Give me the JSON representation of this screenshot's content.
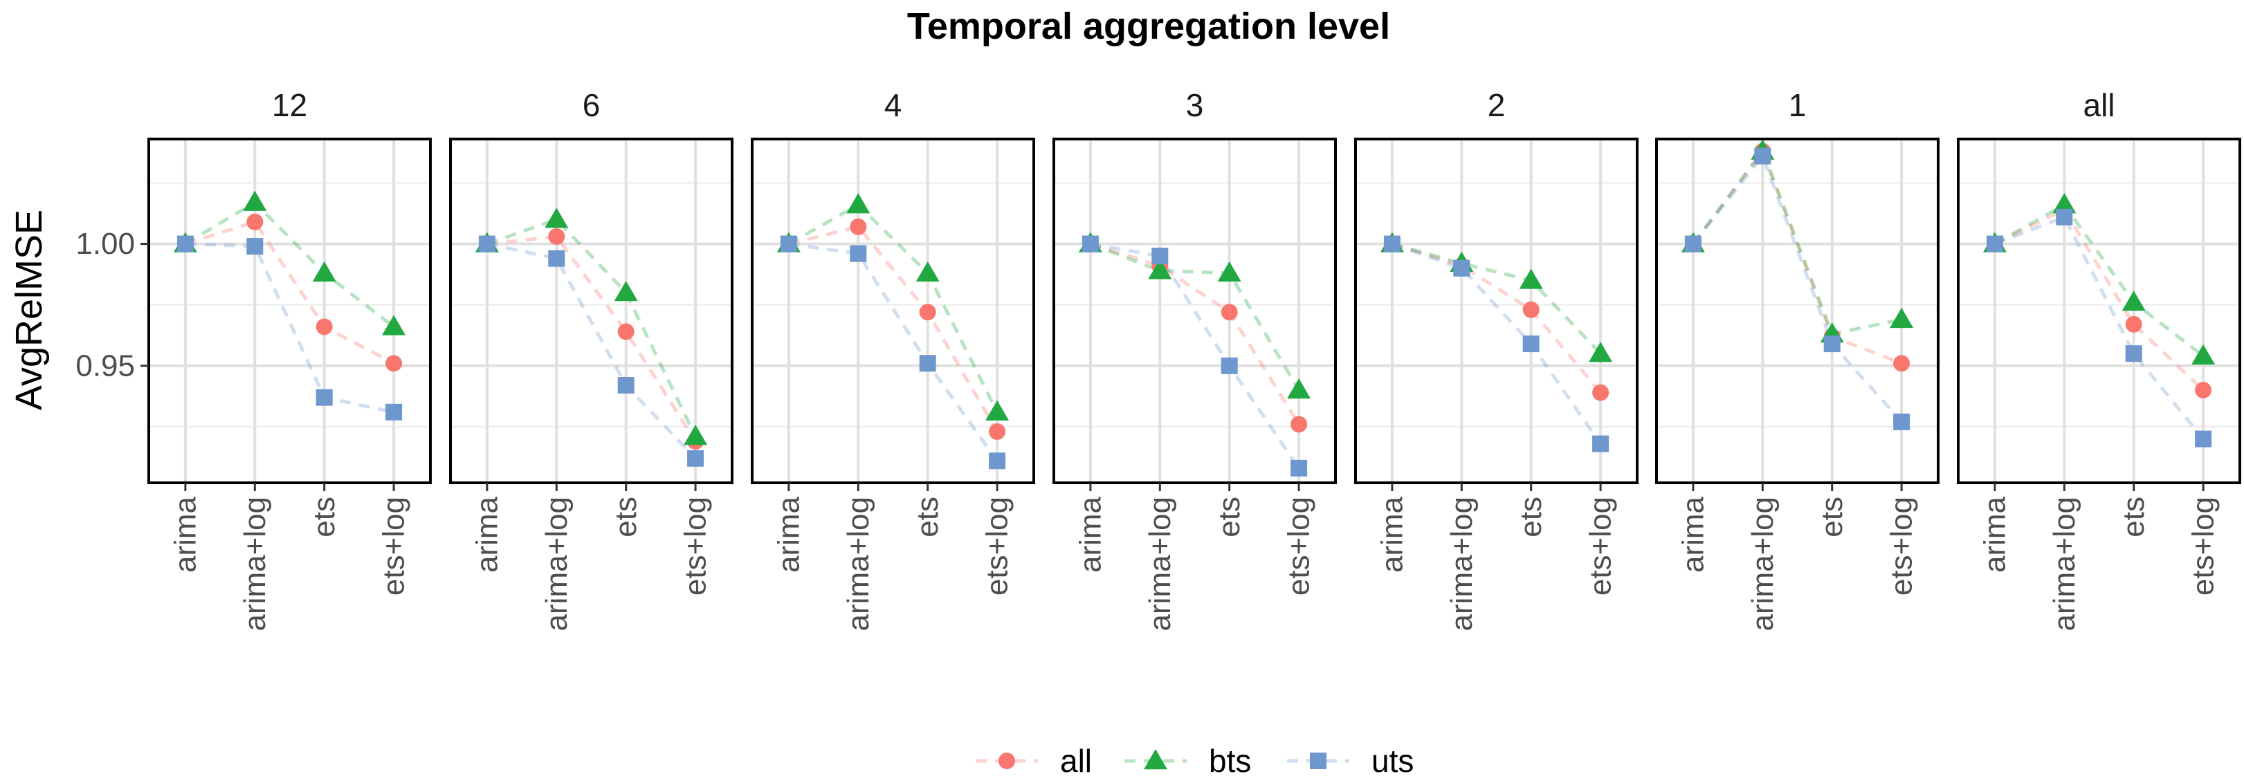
{
  "chart_data": {
    "type": "line",
    "title": "Temporal aggregation level",
    "ylabel": "AvgRelMSE",
    "xlabel": "",
    "ylim": [
      0.902,
      1.043
    ],
    "yticks": [
      0.95,
      1.0
    ],
    "ytick_labels": [
      "0.95",
      "1.00"
    ],
    "categories": [
      "arima",
      "arima+log",
      "ets",
      "ets+log"
    ],
    "legend_placement": "bottom",
    "series_styles": [
      {
        "name": "all",
        "color": "#F8766D",
        "marker": "circle"
      },
      {
        "name": "bts",
        "color": "#22A840",
        "marker": "triangle"
      },
      {
        "name": "uts",
        "color": "#6E97CE",
        "marker": "square"
      }
    ],
    "panels": [
      {
        "facet": "12",
        "series": [
          {
            "name": "all",
            "values": [
              1.0,
              1.009,
              0.966,
              0.951
            ]
          },
          {
            "name": "bts",
            "values": [
              1.0,
              1.017,
              0.988,
              0.966
            ]
          },
          {
            "name": "uts",
            "values": [
              1.0,
              0.999,
              0.937,
              0.931
            ]
          }
        ]
      },
      {
        "facet": "6",
        "series": [
          {
            "name": "all",
            "values": [
              1.0,
              1.003,
              0.964,
              0.919
            ]
          },
          {
            "name": "bts",
            "values": [
              1.0,
              1.01,
              0.98,
              0.921
            ]
          },
          {
            "name": "uts",
            "values": [
              1.0,
              0.994,
              0.942,
              0.912
            ]
          }
        ]
      },
      {
        "facet": "4",
        "series": [
          {
            "name": "all",
            "values": [
              1.0,
              1.007,
              0.972,
              0.923
            ]
          },
          {
            "name": "bts",
            "values": [
              1.0,
              1.016,
              0.988,
              0.931
            ]
          },
          {
            "name": "uts",
            "values": [
              1.0,
              0.996,
              0.951,
              0.911
            ]
          }
        ]
      },
      {
        "facet": "3",
        "series": [
          {
            "name": "all",
            "values": [
              1.0,
              0.991,
              0.972,
              0.926
            ]
          },
          {
            "name": "bts",
            "values": [
              1.0,
              0.989,
              0.988,
              0.94
            ]
          },
          {
            "name": "uts",
            "values": [
              1.0,
              0.995,
              0.95,
              0.908
            ]
          }
        ]
      },
      {
        "facet": "2",
        "series": [
          {
            "name": "all",
            "values": [
              1.0,
              0.991,
              0.973,
              0.939
            ]
          },
          {
            "name": "bts",
            "values": [
              1.0,
              0.992,
              0.985,
              0.955
            ]
          },
          {
            "name": "uts",
            "values": [
              1.0,
              0.99,
              0.959,
              0.918
            ]
          }
        ]
      },
      {
        "facet": "1",
        "series": [
          {
            "name": "all",
            "values": [
              1.0,
              1.038,
              0.962,
              0.951
            ]
          },
          {
            "name": "bts",
            "values": [
              1.0,
              1.038,
              0.963,
              0.969
            ]
          },
          {
            "name": "uts",
            "values": [
              1.0,
              1.036,
              0.959,
              0.927
            ]
          }
        ]
      },
      {
        "facet": "all",
        "series": [
          {
            "name": "all",
            "values": [
              1.0,
              1.014,
              0.967,
              0.94
            ]
          },
          {
            "name": "bts",
            "values": [
              1.0,
              1.016,
              0.976,
              0.954
            ]
          },
          {
            "name": "uts",
            "values": [
              1.0,
              1.011,
              0.955,
              0.92
            ]
          }
        ]
      }
    ]
  }
}
